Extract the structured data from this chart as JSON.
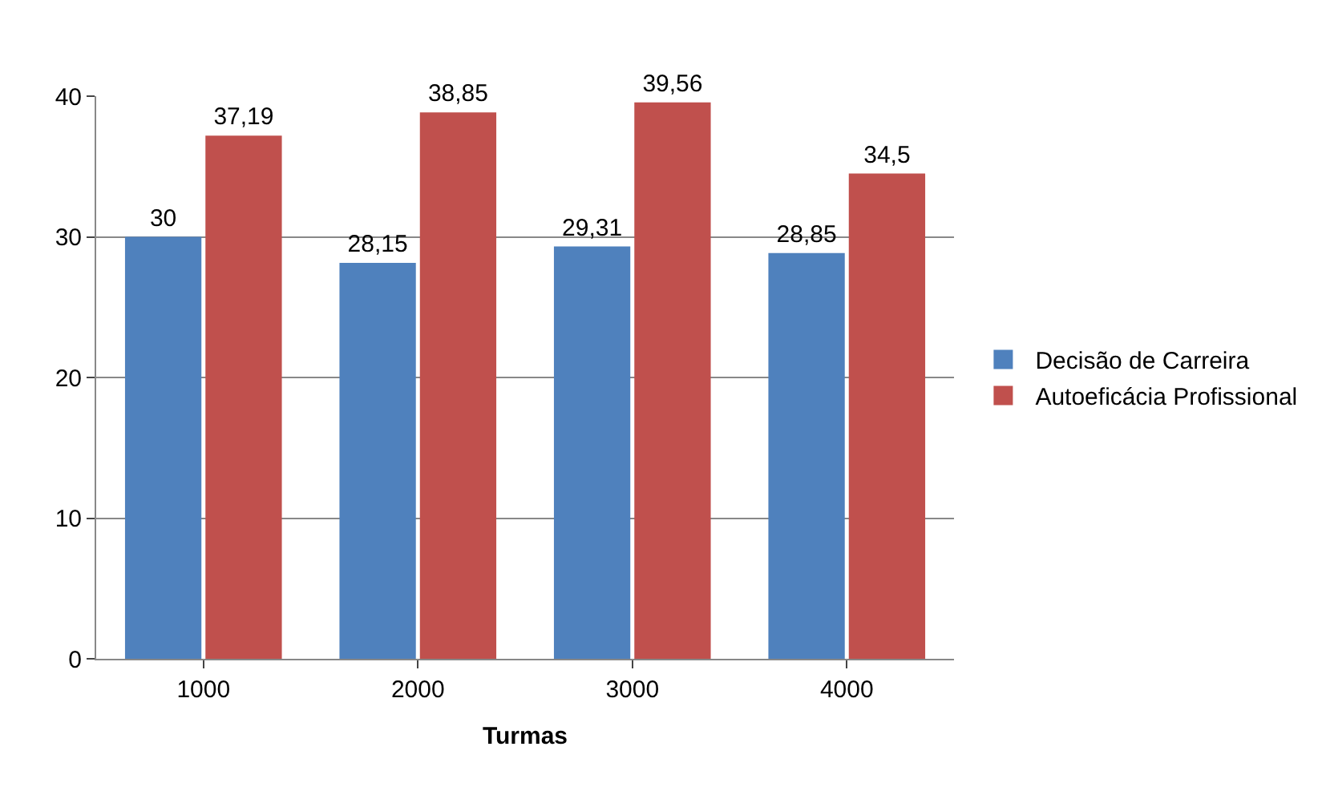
{
  "chart_data": {
    "type": "bar",
    "xlabel": "Turmas",
    "categories": [
      "1000",
      "2000",
      "3000",
      "4000"
    ],
    "series": [
      {
        "name": "Decisão de Carreira",
        "color": "#4f81bd",
        "values": [
          30,
          28.15,
          29.31,
          28.85
        ],
        "value_labels": [
          "30",
          "28,15",
          "29,31",
          "28,85"
        ]
      },
      {
        "name": "Autoeficácia Profissional",
        "color": "#c0504d",
        "values": [
          37.19,
          38.85,
          39.56,
          34.5
        ],
        "value_labels": [
          "37,19",
          "38,85",
          "39,56",
          "34,5"
        ]
      }
    ],
    "ylim": [
      0,
      40
    ],
    "yticks": [
      0,
      10,
      20,
      30,
      40
    ],
    "grid": "y",
    "legend": "right"
  }
}
